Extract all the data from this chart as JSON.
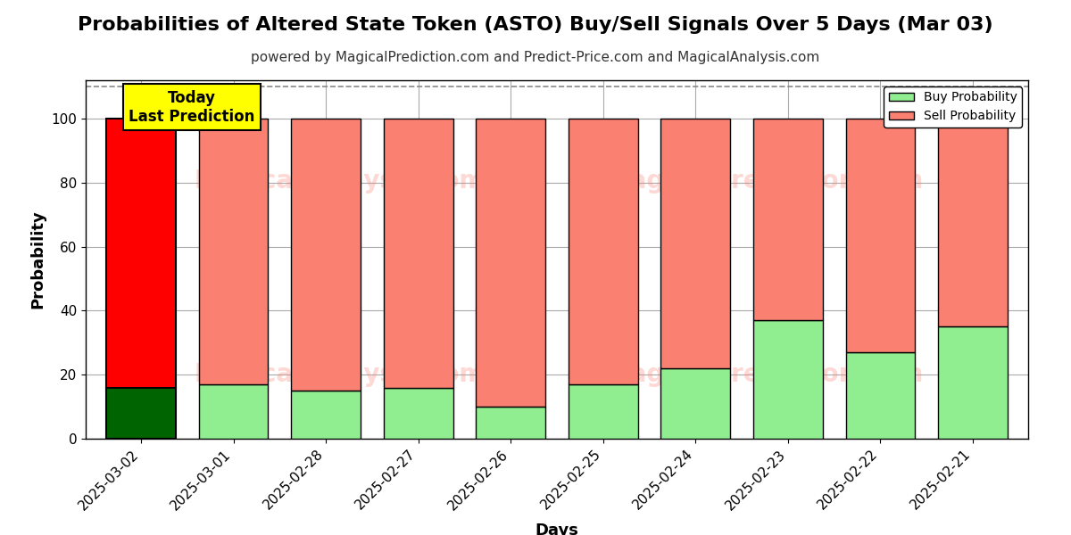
{
  "title": "Probabilities of Altered State Token (ASTO) Buy/Sell Signals Over 5 Days (Mar 03)",
  "subtitle": "powered by MagicalPrediction.com and Predict-Price.com and MagicalAnalysis.com",
  "xlabel": "Days",
  "ylabel": "Probability",
  "categories": [
    "2025-03-02",
    "2025-03-01",
    "2025-02-28",
    "2025-02-27",
    "2025-02-26",
    "2025-02-25",
    "2025-02-24",
    "2025-02-23",
    "2025-02-22",
    "2025-02-21"
  ],
  "buy_values": [
    16,
    17,
    15,
    16,
    10,
    17,
    22,
    37,
    27,
    35
  ],
  "sell_values": [
    84,
    83,
    85,
    84,
    90,
    83,
    78,
    63,
    73,
    65
  ],
  "today_bar_buy_color": "#006400",
  "today_bar_sell_color": "#ff0000",
  "normal_bar_buy_color": "#90EE90",
  "normal_bar_sell_color": "#FA8072",
  "bar_edge_color": "#000000",
  "today_label_bg": "#ffff00",
  "today_label_text": "Today\nLast Prediction",
  "ylim": [
    0,
    112
  ],
  "dashed_line_y": 110,
  "legend_buy_label": "Buy Probability",
  "legend_sell_label": "Sell Probability",
  "title_fontsize": 16,
  "subtitle_fontsize": 11,
  "axis_label_fontsize": 13,
  "tick_fontsize": 11,
  "background_color": "#ffffff",
  "grid_color": "#aaaaaa"
}
